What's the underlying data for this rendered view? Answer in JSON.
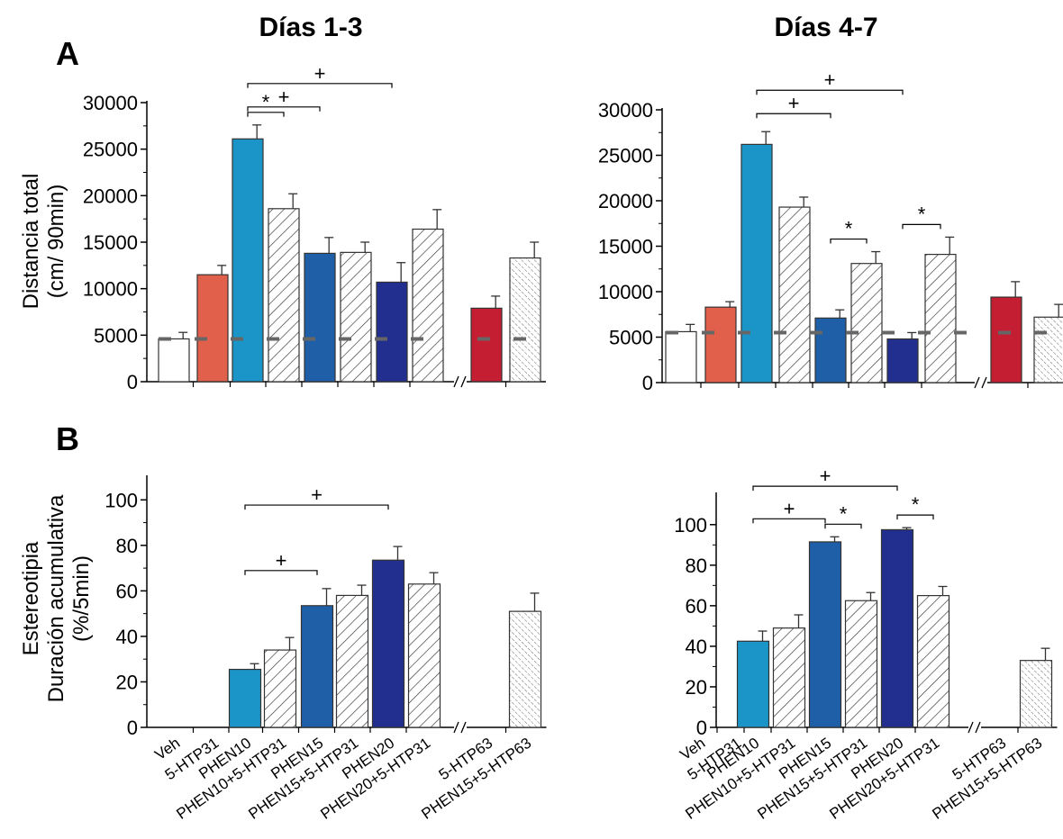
{
  "titles": [
    "Días 1-3",
    "Días 4-7"
  ],
  "panel_labels": [
    "A",
    "B"
  ],
  "ylabels": {
    "A": [
      "Distancia total",
      "(cm/ 90min)"
    ],
    "B": [
      "Estereotipia",
      "Duración acumulativa",
      "(%/5min)"
    ]
  },
  "colors": {
    "Veh": "#ffffff",
    "5-HTP31": "#e0604c",
    "PHEN10": "#1b95c8",
    "PHEN15": "#1f5fa8",
    "PHEN20": "#232f8f",
    "5-HTP63": "#c41e33",
    "reference_line": "#666666"
  },
  "chart_data": [
    {
      "type": "bar",
      "panel": "A",
      "title": "Días 1-3",
      "ylabel": "Distancia total (cm/ 90min)",
      "ylim": [
        0,
        30000
      ],
      "yticks": [
        0,
        5000,
        10000,
        15000,
        20000,
        25000,
        30000
      ],
      "categories": [
        "Veh",
        "5-HTP31",
        "PHEN10",
        "PHEN10+5-HTP31",
        "PHEN15",
        "PHEN15+5-HTP31",
        "PHEN20",
        "PHEN20+5-HTP31",
        "5-HTP63",
        "PHEN15+5-HTP63"
      ],
      "values": [
        4600,
        11500,
        26100,
        18600,
        13800,
        13900,
        10700,
        16400,
        7900,
        13300
      ],
      "errors": [
        700,
        1000,
        1500,
        1600,
        1700,
        1100,
        2100,
        2100,
        1300,
        1700
      ],
      "reference_line": 4600,
      "significance": [
        {
          "from": 2,
          "to": 3,
          "label": "*"
        },
        {
          "from": 2,
          "to": 4,
          "label": "+"
        },
        {
          "from": 2,
          "to": 6,
          "label": "+"
        }
      ]
    },
    {
      "type": "bar",
      "panel": "A",
      "title": "Días 4-7",
      "ylim": [
        0,
        30000
      ],
      "yticks": [
        0,
        5000,
        10000,
        15000,
        20000,
        25000,
        30000
      ],
      "categories": [
        "Veh",
        "5-HTP31",
        "PHEN10",
        "PHEN10+5-HTP31",
        "PHEN15",
        "PHEN15+5-HTP31",
        "PHEN20",
        "PHEN20+5-HTP31",
        "5-HTP63",
        "PHEN15+5-HTP63"
      ],
      "values": [
        5600,
        8300,
        26200,
        19300,
        7100,
        13100,
        4800,
        14100,
        9400,
        7200
      ],
      "errors": [
        800,
        600,
        1400,
        1100,
        900,
        1300,
        700,
        1900,
        1700,
        1400
      ],
      "reference_line": 5500,
      "significance": [
        {
          "from": 2,
          "to": 4,
          "label": "+"
        },
        {
          "from": 2,
          "to": 6,
          "label": "+"
        },
        {
          "from": 4,
          "to": 5,
          "label": "*"
        },
        {
          "from": 6,
          "to": 7,
          "label": "*"
        }
      ]
    },
    {
      "type": "bar",
      "panel": "B",
      "title": "Días 1-3",
      "ylabel": "Estereotipia Duración acumulativa (%/5min)",
      "ylim": [
        0,
        110
      ],
      "yticks": [
        0,
        20,
        40,
        60,
        80,
        100
      ],
      "categories": [
        "Veh",
        "5-HTP31",
        "PHEN10",
        "PHEN10+5-HTP31",
        "PHEN15",
        "PHEN15+5-HTP31",
        "PHEN20",
        "PHEN20+5-HTP31",
        "5-HTP63",
        "PHEN15+5-HTP63"
      ],
      "values": [
        0,
        0,
        25.5,
        34,
        53.5,
        58,
        73.5,
        63,
        0,
        51
      ],
      "errors": [
        0,
        0,
        2.5,
        5.5,
        7.5,
        4.5,
        6,
        5,
        0,
        8
      ],
      "significance": [
        {
          "from": 2,
          "to": 4,
          "label": "+"
        },
        {
          "from": 2,
          "to": 6,
          "label": "+"
        }
      ]
    },
    {
      "type": "bar",
      "panel": "B",
      "title": "Días 4-7",
      "ylim": [
        0,
        115
      ],
      "yticks": [
        0,
        20,
        40,
        60,
        80,
        100
      ],
      "categories": [
        "Veh",
        "5-HTP31",
        "PHEN10",
        "PHEN10+5-HTP31",
        "PHEN15",
        "PHEN15+5-HTP31",
        "PHEN20",
        "PHEN20+5-HTP31",
        "5-HTP63",
        "PHEN15+5-HTP63"
      ],
      "values": [
        0,
        0,
        42.5,
        49,
        91.5,
        62.5,
        97.5,
        65,
        0,
        33
      ],
      "errors": [
        0,
        0,
        5,
        6.5,
        2.5,
        4,
        1,
        4.5,
        0,
        6
      ],
      "significance": [
        {
          "from": 2,
          "to": 4,
          "label": "+"
        },
        {
          "from": 2,
          "to": 6,
          "label": "+"
        },
        {
          "from": 4,
          "to": 5,
          "label": "*"
        },
        {
          "from": 6,
          "to": 7,
          "label": "*"
        }
      ]
    }
  ]
}
